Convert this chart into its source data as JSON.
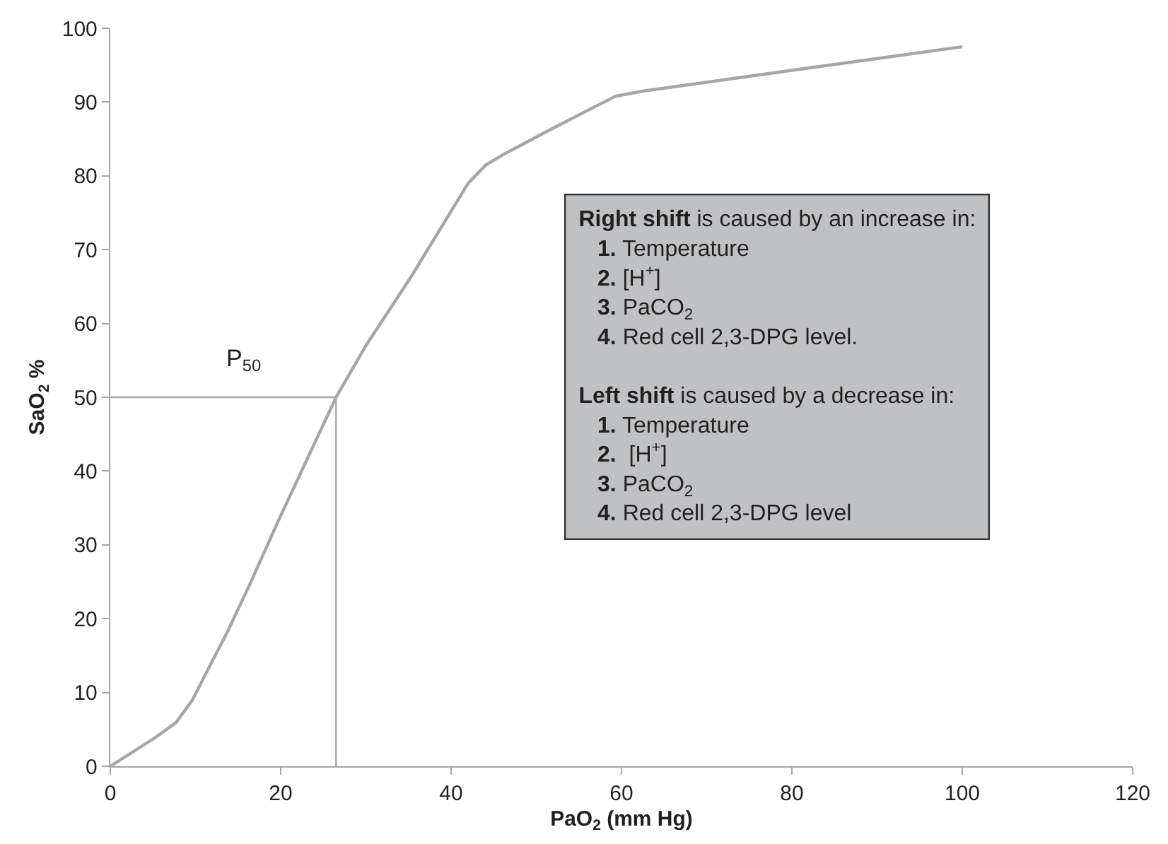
{
  "chart_data": {
    "type": "line",
    "xlabel": "PaO$_{2}$ (mm Hg)",
    "ylabel": "SaO$_{2}$ %",
    "xlim": [
      0,
      120
    ],
    "xticks": [
      0,
      20,
      40,
      60,
      80,
      100,
      120
    ],
    "ylim": [
      0,
      100
    ],
    "yticks": [
      0,
      10,
      20,
      30,
      40,
      50,
      60,
      70,
      80,
      90,
      100
    ],
    "marker": "none",
    "line_style": "solid",
    "series": [
      {
        "color": "#a6a6a6",
        "x": [
          0,
          5.3,
          7.7,
          9.6,
          11.5,
          13.7,
          16.4,
          19.7,
          22.9,
          26.5,
          30,
          35.4,
          42,
          44.1,
          46.3,
          51.7,
          59.3,
          62.6,
          80,
          100
        ],
        "values": [
          0,
          3.9,
          5.9,
          8.9,
          13.2,
          18.1,
          24.7,
          33.2,
          41.1,
          50,
          57,
          66.5,
          79,
          81.5,
          83,
          86.3,
          90.8,
          91.5,
          94.3,
          97.5
        ]
      },
      {
        "color": "#a6a6a6",
        "x": [
          0,
          26.5,
          26.5
        ],
        "values": [
          50,
          50,
          0
        ]
      }
    ],
    "annotations": [
      "P$_{50}$",
      "Right shift is caused by an increase in:",
      "1. Temperature",
      "2. [H$^{+}$]",
      "3. PaCO$_{2}$",
      "4. Red cell 2,3-DPG level.",
      "Left shift is caused by a decrease in:",
      "1. Temperature",
      "2.  [H$^{+}$]",
      "3. PaCO$_{2}$",
      "4. Red cell 2,3-DPG level"
    ]
  }
}
